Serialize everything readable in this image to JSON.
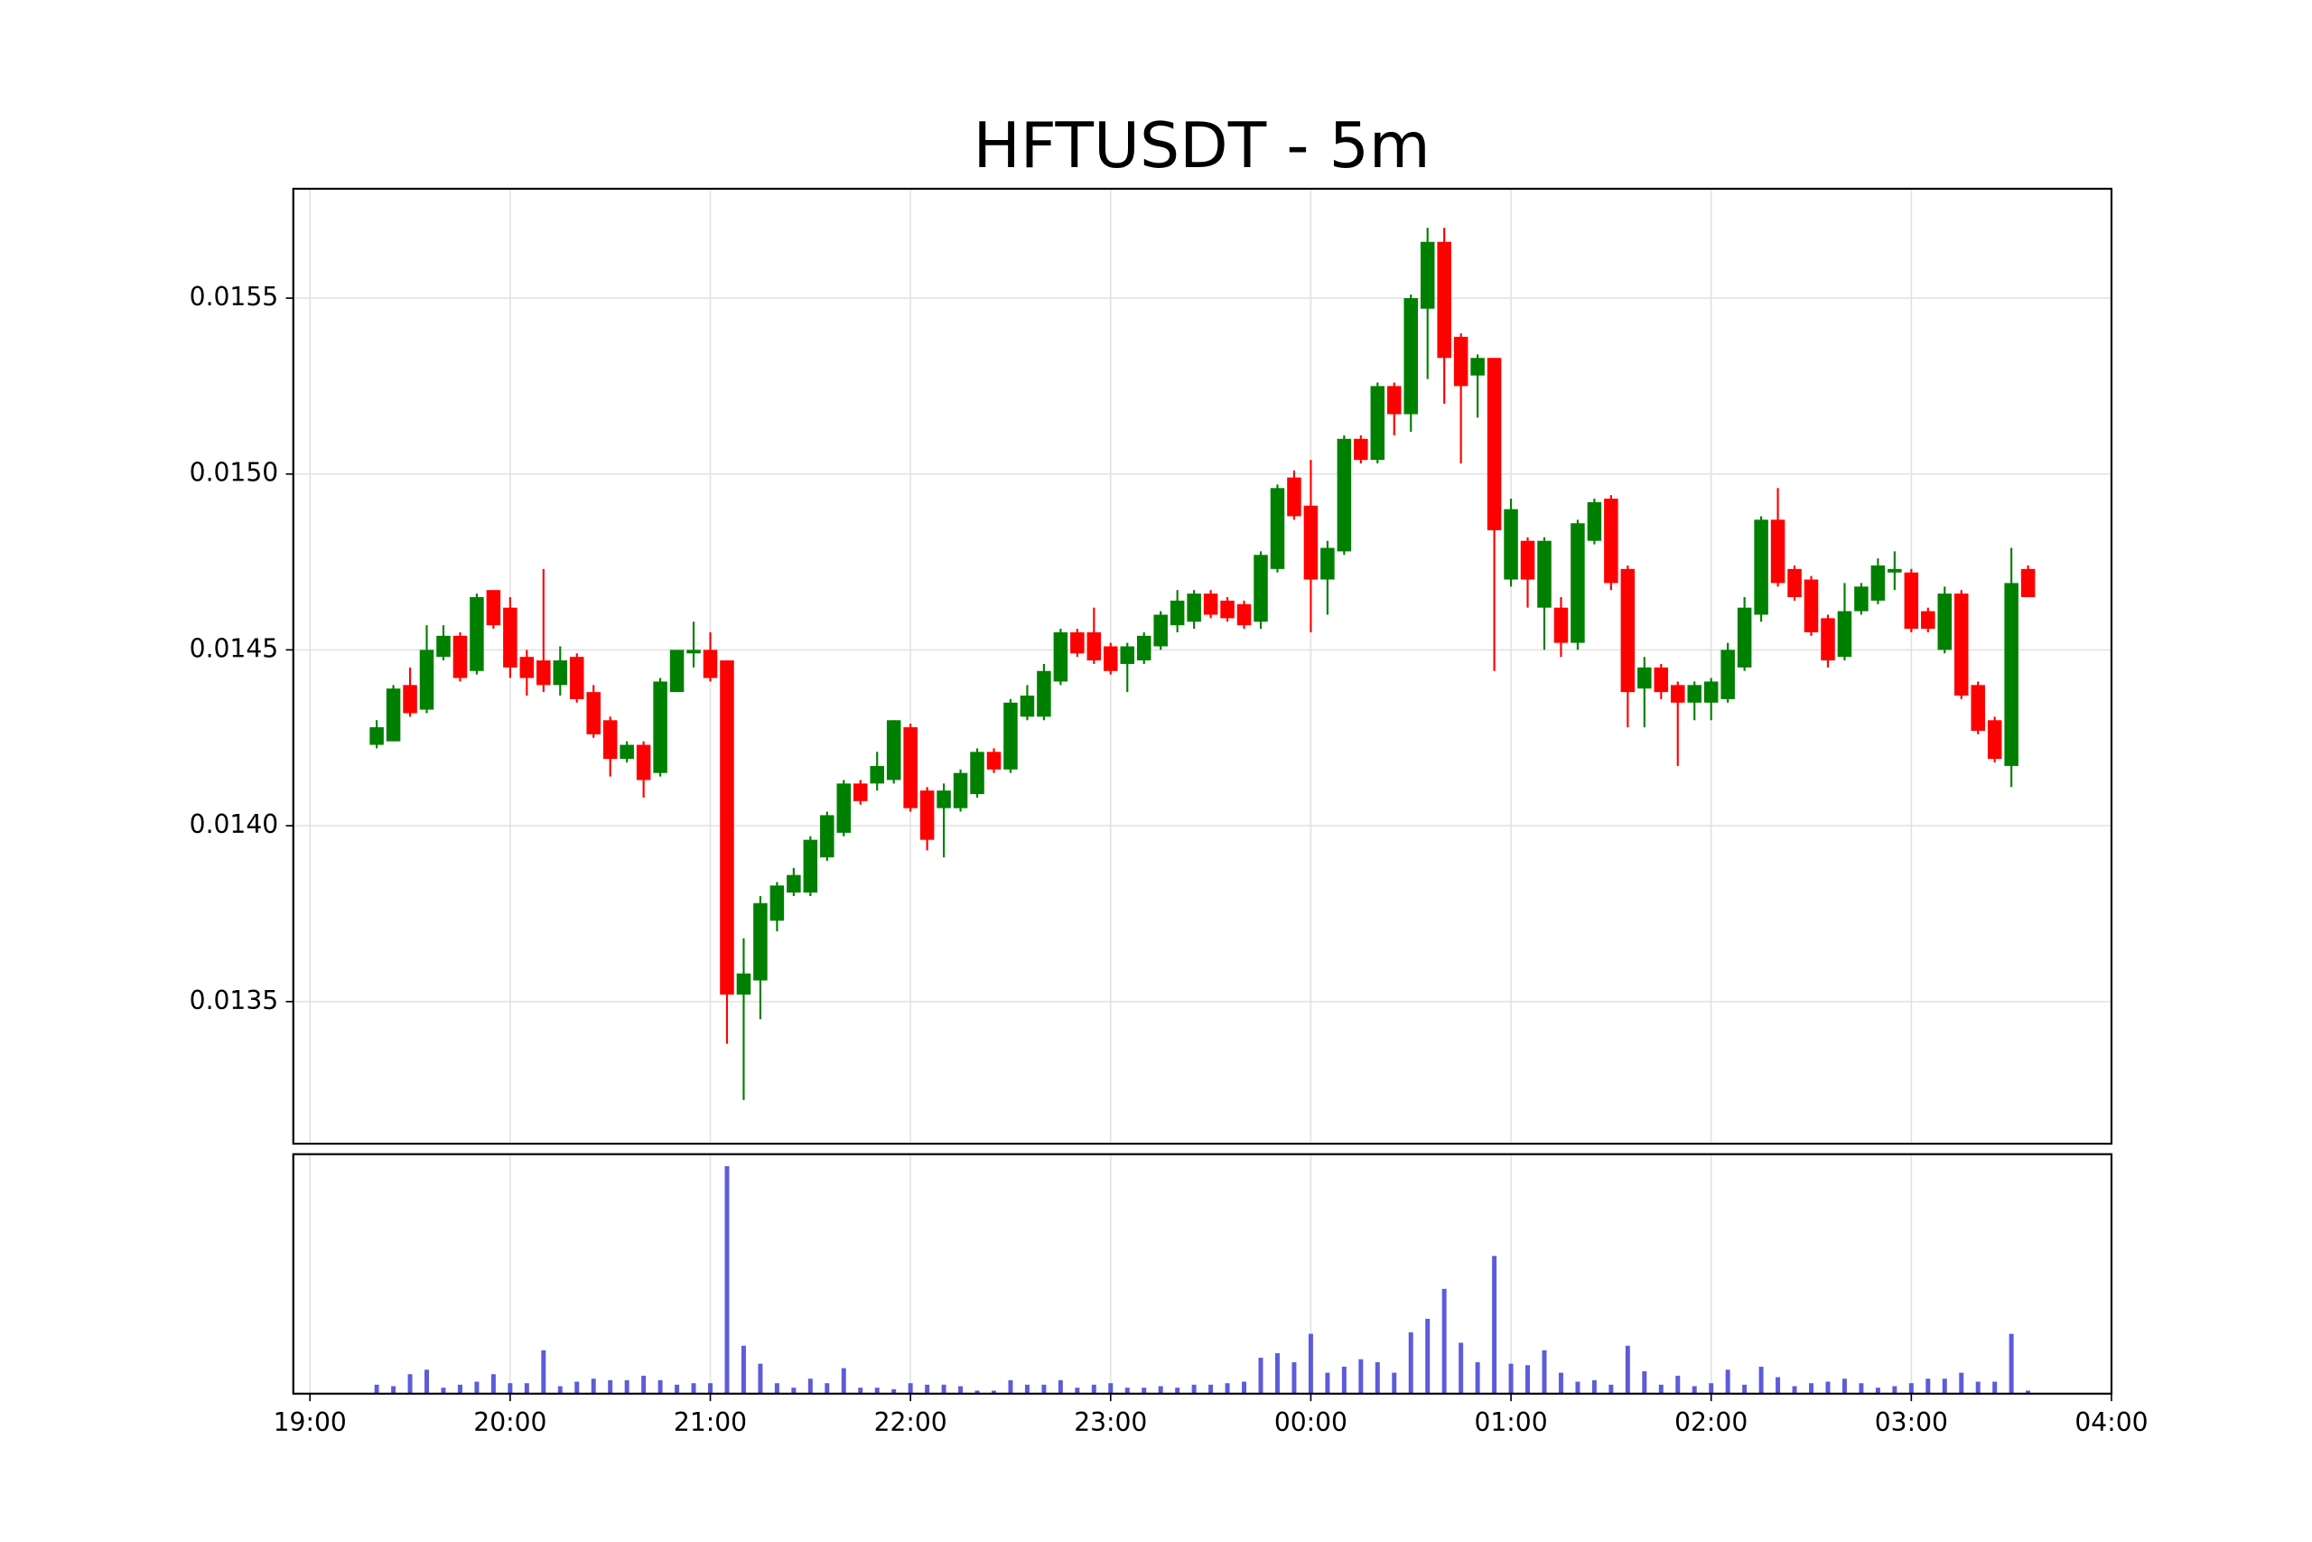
{
  "chart_data": {
    "type": "candlestick",
    "title": "HFTUSDT - 5m",
    "x": [
      "19:20",
      "19:25",
      "19:30",
      "19:35",
      "19:40",
      "19:45",
      "19:50",
      "19:55",
      "20:00",
      "20:05",
      "20:10",
      "20:15",
      "20:20",
      "20:25",
      "20:30",
      "20:35",
      "20:40",
      "20:45",
      "20:50",
      "20:55",
      "21:00",
      "21:05",
      "21:10",
      "21:15",
      "21:20",
      "21:25",
      "21:30",
      "21:35",
      "21:40",
      "21:45",
      "21:50",
      "21:55",
      "22:00",
      "22:05",
      "22:10",
      "22:15",
      "22:20",
      "22:25",
      "22:30",
      "22:35",
      "22:40",
      "22:45",
      "22:50",
      "22:55",
      "23:00",
      "23:05",
      "23:10",
      "23:15",
      "23:20",
      "23:25",
      "23:30",
      "23:35",
      "23:40",
      "23:45",
      "23:50",
      "23:55",
      "00:00",
      "00:05",
      "00:10",
      "00:15",
      "00:20",
      "00:25",
      "00:30",
      "00:35",
      "00:40",
      "00:45",
      "00:50",
      "00:55",
      "01:00",
      "01:05",
      "01:10",
      "01:15",
      "01:20",
      "01:25",
      "01:30",
      "01:35",
      "01:40",
      "01:45",
      "01:50",
      "01:55",
      "02:00",
      "02:05",
      "02:10",
      "02:15",
      "02:20",
      "02:25",
      "02:30",
      "02:35",
      "02:40",
      "02:45",
      "02:50",
      "02:55",
      "03:00",
      "03:05",
      "03:10",
      "03:15",
      "03:20",
      "03:25",
      "03:30",
      "03:35"
    ],
    "open": [
      0.01423,
      0.01424,
      0.0144,
      0.01433,
      0.01448,
      0.01454,
      0.01444,
      0.01467,
      0.01462,
      0.01448,
      0.01447,
      0.0144,
      0.01448,
      0.01438,
      0.0143,
      0.01419,
      0.01423,
      0.01415,
      0.01438,
      0.01449,
      0.0145,
      0.01447,
      0.01352,
      0.01356,
      0.01373,
      0.01381,
      0.01381,
      0.01391,
      0.01398,
      0.01412,
      0.01412,
      0.01413,
      0.01428,
      0.0141,
      0.01405,
      0.01405,
      0.01409,
      0.01421,
      0.01416,
      0.01431,
      0.01431,
      0.01441,
      0.01455,
      0.01455,
      0.01451,
      0.01446,
      0.01447,
      0.01451,
      0.01457,
      0.01458,
      0.01466,
      0.01464,
      0.01463,
      0.01458,
      0.01473,
      0.01499,
      0.01491,
      0.0147,
      0.01478,
      0.0151,
      0.01504,
      0.01525,
      0.01517,
      0.01547,
      0.01566,
      0.01539,
      0.01528,
      0.01533,
      0.0147,
      0.01481,
      0.01462,
      0.01462,
      0.01452,
      0.01481,
      0.01493,
      0.01473,
      0.01439,
      0.01445,
      0.0144,
      0.01435,
      0.01435,
      0.01436,
      0.01445,
      0.0146,
      0.01487,
      0.01473,
      0.0147,
      0.01459,
      0.01448,
      0.01461,
      0.01464,
      0.01472,
      0.01472,
      0.01461,
      0.0145,
      0.01466,
      0.0144,
      0.0143,
      0.01417,
      0.01473
    ],
    "close": [
      0.01428,
      0.01439,
      0.01432,
      0.0145,
      0.01454,
      0.01442,
      0.01465,
      0.01457,
      0.01445,
      0.01442,
      0.0144,
      0.01447,
      0.01436,
      0.01426,
      0.01419,
      0.01423,
      0.01413,
      0.01441,
      0.0145,
      0.0145,
      0.01442,
      0.01352,
      0.01358,
      0.01378,
      0.01383,
      0.01386,
      0.01396,
      0.01403,
      0.01412,
      0.01407,
      0.01417,
      0.0143,
      0.01405,
      0.01396,
      0.0141,
      0.01415,
      0.01421,
      0.01416,
      0.01435,
      0.01437,
      0.01444,
      0.01455,
      0.01449,
      0.01447,
      0.01444,
      0.01451,
      0.01454,
      0.0146,
      0.01464,
      0.01466,
      0.0146,
      0.01459,
      0.01457,
      0.01477,
      0.01496,
      0.01488,
      0.0147,
      0.01479,
      0.0151,
      0.01504,
      0.01525,
      0.01517,
      0.0155,
      0.01566,
      0.01533,
      0.01525,
      0.01533,
      0.01484,
      0.0149,
      0.0147,
      0.01481,
      0.01452,
      0.01486,
      0.01492,
      0.01469,
      0.01438,
      0.01445,
      0.01438,
      0.01435,
      0.0144,
      0.01441,
      0.0145,
      0.01462,
      0.01487,
      0.01469,
      0.01465,
      0.01455,
      0.01447,
      0.01461,
      0.01468,
      0.01474,
      0.01473,
      0.01456,
      0.01456,
      0.01466,
      0.01437,
      0.01427,
      0.01419,
      0.01469,
      0.01465
    ],
    "high": [
      0.0143,
      0.0144,
      0.01445,
      0.01457,
      0.01457,
      0.01455,
      0.01466,
      0.01467,
      0.01465,
      0.0145,
      0.01473,
      0.01451,
      0.01449,
      0.0144,
      0.01431,
      0.01424,
      0.01424,
      0.01442,
      0.0145,
      0.01458,
      0.01455,
      0.01447,
      0.01368,
      0.0138,
      0.01384,
      0.01388,
      0.01397,
      0.01404,
      0.01413,
      0.01413,
      0.01421,
      0.0143,
      0.01429,
      0.01411,
      0.01412,
      0.01416,
      0.01422,
      0.01422,
      0.01436,
      0.0144,
      0.01446,
      0.01456,
      0.01456,
      0.01462,
      0.01452,
      0.01452,
      0.01455,
      0.01461,
      0.01467,
      0.01467,
      0.01467,
      0.01465,
      0.01464,
      0.01478,
      0.01497,
      0.01501,
      0.01504,
      0.01481,
      0.01511,
      0.01511,
      0.01526,
      0.01526,
      0.01551,
      0.0157,
      0.0157,
      0.0154,
      0.01534,
      0.01533,
      0.01493,
      0.01482,
      0.01482,
      0.01465,
      0.01487,
      0.01493,
      0.01494,
      0.01474,
      0.01448,
      0.01446,
      0.01441,
      0.01441,
      0.01442,
      0.01452,
      0.01465,
      0.01488,
      0.01496,
      0.01474,
      0.01471,
      0.0146,
      0.01469,
      0.01469,
      0.01476,
      0.01478,
      0.01473,
      0.01462,
      0.01468,
      0.01467,
      0.01441,
      0.01431,
      0.01479,
      0.01474
    ],
    "low": [
      0.01422,
      0.01424,
      0.01431,
      0.01432,
      0.01447,
      0.01441,
      0.01443,
      0.01456,
      0.01442,
      0.01437,
      0.01438,
      0.01437,
      0.01435,
      0.01425,
      0.01414,
      0.01418,
      0.01408,
      0.01414,
      0.01438,
      0.01445,
      0.01441,
      0.01338,
      0.01322,
      0.01345,
      0.0137,
      0.0138,
      0.0138,
      0.0139,
      0.01397,
      0.01406,
      0.0141,
      0.01412,
      0.01404,
      0.01393,
      0.01391,
      0.01404,
      0.01408,
      0.01415,
      0.01415,
      0.0143,
      0.0143,
      0.0144,
      0.01448,
      0.01446,
      0.01443,
      0.01438,
      0.01446,
      0.0145,
      0.01455,
      0.01456,
      0.01459,
      0.01458,
      0.01456,
      0.01456,
      0.01472,
      0.01487,
      0.01455,
      0.0146,
      0.01477,
      0.01503,
      0.01503,
      0.01511,
      0.01512,
      0.01527,
      0.0152,
      0.01503,
      0.01516,
      0.01444,
      0.01468,
      0.01462,
      0.0145,
      0.01448,
      0.0145,
      0.0148,
      0.01467,
      0.01428,
      0.01428,
      0.01436,
      0.01417,
      0.0143,
      0.0143,
      0.01435,
      0.01444,
      0.01458,
      0.01468,
      0.01464,
      0.01454,
      0.01445,
      0.01447,
      0.0146,
      0.01463,
      0.01467,
      0.01455,
      0.01455,
      0.01449,
      0.01436,
      0.01426,
      0.01418,
      0.01411,
      0.01465
    ],
    "volume": [
      6,
      5,
      13,
      16,
      4,
      6,
      8,
      13,
      7,
      7,
      29,
      5,
      8,
      10,
      9,
      9,
      12,
      9,
      6,
      7,
      7,
      152,
      32,
      20,
      7,
      4,
      10,
      7,
      17,
      4,
      4,
      3,
      7,
      6,
      6,
      5,
      2,
      2,
      9,
      6,
      6,
      9,
      4,
      6,
      7,
      4,
      4,
      5,
      4,
      6,
      6,
      7,
      8,
      24,
      27,
      21,
      40,
      14,
      18,
      23,
      21,
      14,
      41,
      50,
      70,
      34,
      21,
      92,
      20,
      19,
      29,
      14,
      8,
      9,
      6,
      32,
      15,
      6,
      12,
      5,
      7,
      16,
      6,
      18,
      11,
      5,
      7,
      8,
      10,
      7,
      4,
      5,
      7,
      10,
      10,
      14,
      8,
      8,
      40,
      2
    ],
    "up_color": "#008000",
    "down_color": "#ff0000",
    "volume_color": "#5c5cdb",
    "xlim": [
      "18:55",
      "04:00"
    ],
    "xticks": [
      "19:00",
      "20:00",
      "21:00",
      "22:00",
      "23:00",
      "00:00",
      "01:00",
      "02:00",
      "03:00",
      "04:00"
    ],
    "ylim": [
      0.013096,
      0.015811
    ],
    "yticks": [
      {
        "value": 0.0135,
        "label": "0.0135"
      },
      {
        "value": 0.014,
        "label": "0.0140"
      },
      {
        "value": 0.0145,
        "label": "0.0145"
      },
      {
        "value": 0.015,
        "label": "0.0150"
      },
      {
        "value": 0.0155,
        "label": "0.0155"
      }
    ],
    "volume_ylim": [
      0,
      160
    ],
    "grid": true
  }
}
